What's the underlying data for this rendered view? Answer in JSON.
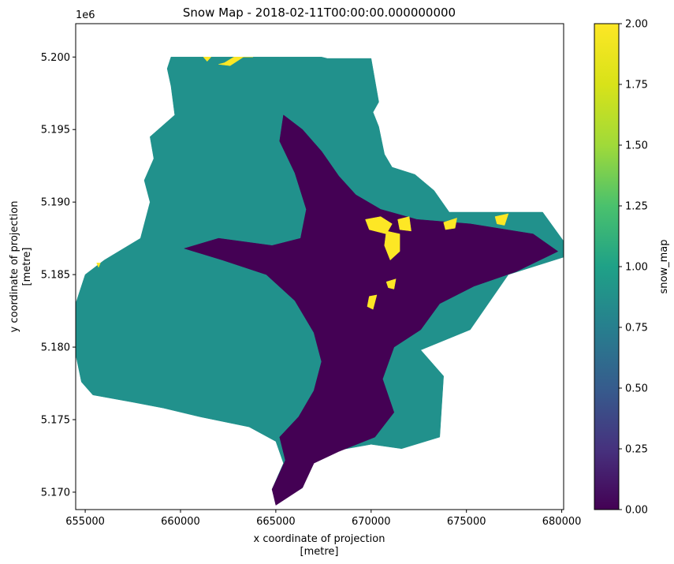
{
  "chart_data": {
    "type": "heatmap",
    "title": "Snow Map - 2018-02-11T00:00:00.000000000",
    "xlabel": [
      "x coordinate of projection",
      "[metre]"
    ],
    "ylabel": [
      "y coordinate of projection",
      "[metre]"
    ],
    "x_offset_label": "",
    "y_offset_label": "1e6",
    "xlim": [
      654500,
      680100
    ],
    "ylim": [
      5.1688,
      5.2023
    ],
    "x_ticks": [
      655000,
      660000,
      665000,
      670000,
      675000,
      680000
    ],
    "x_tick_labels": [
      "655000",
      "660000",
      "665000",
      "670000",
      "675000",
      "680000"
    ],
    "y_ticks": [
      5.17,
      5.175,
      5.18,
      5.185,
      5.19,
      5.195,
      5.2
    ],
    "y_tick_labels": [
      "5.170",
      "5.175",
      "5.180",
      "5.185",
      "5.190",
      "5.195",
      "5.200"
    ],
    "grid": false,
    "colorbar": {
      "label": "snow_map",
      "colormap": "viridis",
      "range": [
        0.0,
        2.0
      ],
      "ticks": [
        0.0,
        0.25,
        0.5,
        0.75,
        1.0,
        1.25,
        1.5,
        1.75,
        2.0
      ],
      "tick_labels": [
        "0.00",
        "0.25",
        "0.50",
        "0.75",
        "1.00",
        "1.25",
        "1.50",
        "1.75",
        "2.00"
      ]
    },
    "classes": [
      {
        "value": 0,
        "color": "#440154"
      },
      {
        "value": 1,
        "color": "#21918c"
      },
      {
        "value": 2,
        "color": "#fde725"
      }
    ],
    "regions": [
      {
        "value": 1,
        "outline": [
          [
            659500,
            5.2
          ],
          [
            665200,
            5.2
          ],
          [
            667400,
            5.2
          ],
          [
            667700,
            5.1999
          ],
          [
            670000,
            5.1999
          ],
          [
            670400,
            5.1969
          ],
          [
            670100,
            5.1962
          ],
          [
            670400,
            5.1952
          ],
          [
            670700,
            5.1933
          ],
          [
            671100,
            5.1924
          ],
          [
            672300,
            5.1919
          ],
          [
            673300,
            5.1908
          ],
          [
            674100,
            5.1893
          ],
          [
            679000,
            5.1893
          ],
          [
            680100,
            5.1873
          ],
          [
            680100,
            5.1862
          ],
          [
            677200,
            5.185
          ],
          [
            675200,
            5.1812
          ],
          [
            672600,
            5.1798
          ],
          [
            673800,
            5.178
          ],
          [
            673600,
            5.1738
          ],
          [
            671600,
            5.173
          ],
          [
            670000,
            5.1733
          ],
          [
            668300,
            5.1729
          ],
          [
            667000,
            5.1722
          ],
          [
            666400,
            5.1703
          ],
          [
            665000,
            5.1692
          ],
          [
            664800,
            5.1702
          ],
          [
            665400,
            5.172
          ],
          [
            665000,
            5.1735
          ],
          [
            663600,
            5.1745
          ],
          [
            661000,
            5.1752
          ],
          [
            659100,
            5.1758
          ],
          [
            657500,
            5.1762
          ],
          [
            655400,
            5.1767
          ],
          [
            654800,
            5.1776
          ],
          [
            654500,
            5.1795
          ],
          [
            654500,
            5.183
          ],
          [
            655000,
            5.185
          ],
          [
            656000,
            5.186
          ],
          [
            657900,
            5.1875
          ],
          [
            658400,
            5.19
          ],
          [
            658100,
            5.1915
          ],
          [
            658600,
            5.193
          ],
          [
            658400,
            5.1945
          ],
          [
            659700,
            5.196
          ],
          [
            659500,
            5.198
          ],
          [
            659300,
            5.1992
          ]
        ]
      },
      {
        "value": 0,
        "outline": [
          [
            665400,
            5.196
          ],
          [
            666400,
            5.195
          ],
          [
            667400,
            5.1935
          ],
          [
            668300,
            5.1918
          ],
          [
            669200,
            5.1905
          ],
          [
            670500,
            5.1895
          ],
          [
            672400,
            5.1888
          ],
          [
            675200,
            5.1885
          ],
          [
            678500,
            5.1878
          ],
          [
            679800,
            5.1866
          ],
          [
            677600,
            5.1852
          ],
          [
            675400,
            5.1842
          ],
          [
            673600,
            5.183
          ],
          [
            672600,
            5.1812
          ],
          [
            671200,
            5.18
          ],
          [
            670600,
            5.1778
          ],
          [
            671200,
            5.1755
          ],
          [
            670200,
            5.1738
          ],
          [
            668300,
            5.1728
          ],
          [
            667000,
            5.172
          ],
          [
            666400,
            5.1703
          ],
          [
            665000,
            5.1691
          ],
          [
            664800,
            5.1702
          ],
          [
            665500,
            5.1722
          ],
          [
            665200,
            5.1738
          ],
          [
            666200,
            5.1752
          ],
          [
            667000,
            5.177
          ],
          [
            667400,
            5.179
          ],
          [
            667000,
            5.181
          ],
          [
            666000,
            5.1832
          ],
          [
            664500,
            5.185
          ],
          [
            662200,
            5.186
          ],
          [
            660200,
            5.1868
          ],
          [
            662000,
            5.1875
          ],
          [
            664800,
            5.187
          ],
          [
            666300,
            5.1875
          ],
          [
            666600,
            5.1895
          ],
          [
            666000,
            5.192
          ],
          [
            665200,
            5.1942
          ]
        ]
      },
      {
        "value": 2,
        "outline": [
          [
            669700,
            5.1888
          ],
          [
            670500,
            5.189
          ],
          [
            671100,
            5.1885
          ],
          [
            670800,
            5.1878
          ],
          [
            669900,
            5.1881
          ]
        ]
      },
      {
        "value": 2,
        "outline": [
          [
            670800,
            5.188
          ],
          [
            671500,
            5.1878
          ],
          [
            671500,
            5.1866
          ],
          [
            671000,
            5.186
          ],
          [
            670700,
            5.187
          ]
        ]
      },
      {
        "value": 2,
        "outline": [
          [
            671400,
            5.1888
          ],
          [
            672000,
            5.189
          ],
          [
            672100,
            5.188
          ],
          [
            671500,
            5.1881
          ]
        ]
      },
      {
        "value": 2,
        "outline": [
          [
            673800,
            5.1886
          ],
          [
            674500,
            5.1889
          ],
          [
            674400,
            5.1882
          ],
          [
            673900,
            5.1881
          ]
        ]
      },
      {
        "value": 2,
        "outline": [
          [
            676500,
            5.189
          ],
          [
            677200,
            5.1892
          ],
          [
            677000,
            5.1884
          ],
          [
            676600,
            5.1885
          ]
        ]
      },
      {
        "value": 2,
        "outline": [
          [
            670800,
            5.1845
          ],
          [
            671300,
            5.1847
          ],
          [
            671200,
            5.184
          ],
          [
            670900,
            5.1841
          ]
        ]
      },
      {
        "value": 2,
        "outline": [
          [
            669900,
            5.1835
          ],
          [
            670300,
            5.1836
          ],
          [
            670100,
            5.1826
          ],
          [
            669800,
            5.1828
          ]
        ]
      },
      {
        "value": 2,
        "outline": [
          [
            661200,
            5.2
          ],
          [
            661600,
            5.2
          ],
          [
            661400,
            5.1997
          ]
        ]
      },
      {
        "value": 2,
        "outline": [
          [
            662000,
            5.1995
          ],
          [
            662600,
            5.1994
          ],
          [
            663300,
            5.2
          ],
          [
            663800,
            5.2
          ],
          [
            662800,
            5.2
          ],
          [
            662300,
            5.1996
          ]
        ]
      },
      {
        "value": 2,
        "outline": [
          [
            655600,
            5.1858
          ],
          [
            655800,
            5.1858
          ],
          [
            655700,
            5.1855
          ]
        ]
      }
    ]
  }
}
